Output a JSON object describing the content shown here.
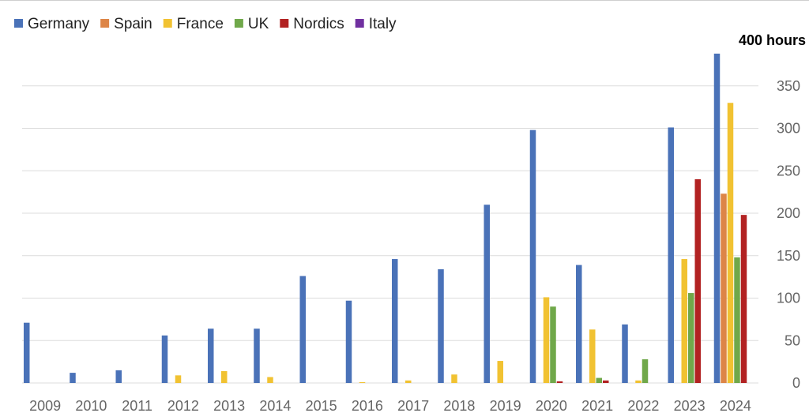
{
  "chart_data": {
    "type": "bar",
    "title": "",
    "xlabel": "",
    "ylabel": "",
    "unit_label": "400 hours",
    "ylim": [
      0,
      400
    ],
    "yticks": [
      0,
      50,
      100,
      150,
      200,
      250,
      300,
      350
    ],
    "grid": true,
    "legend_position": "top-left",
    "categories": [
      "2009",
      "2010",
      "2011",
      "2012",
      "2013",
      "2014",
      "2015",
      "2016",
      "2017",
      "2018",
      "2019",
      "2020",
      "2021",
      "2022",
      "2023",
      "2024"
    ],
    "series": [
      {
        "name": "Germany",
        "color": "#4a72b8",
        "values": [
          71,
          12,
          15,
          56,
          64,
          64,
          126,
          97,
          146,
          134,
          210,
          298,
          139,
          69,
          301,
          388
        ]
      },
      {
        "name": "Spain",
        "color": "#dd8547",
        "values": [
          0,
          0,
          0,
          0,
          0,
          0,
          0,
          0,
          0,
          0,
          0,
          0,
          0,
          0,
          0,
          223
        ]
      },
      {
        "name": "France",
        "color": "#f1c232",
        "values": [
          0,
          0,
          0,
          9,
          14,
          7,
          0,
          1,
          3,
          10,
          26,
          101,
          63,
          3,
          146,
          330
        ]
      },
      {
        "name": "UK",
        "color": "#70a84a",
        "values": [
          0,
          0,
          0,
          0,
          0,
          0,
          0,
          0,
          0,
          0,
          0,
          90,
          6,
          28,
          106,
          148
        ]
      },
      {
        "name": "Nordics",
        "color": "#b22222",
        "values": [
          0,
          0,
          0,
          0,
          0,
          0,
          0,
          0,
          0,
          0,
          0,
          2,
          3,
          0,
          240,
          198
        ]
      },
      {
        "name": "Italy",
        "color": "#7030a0",
        "values": [
          0,
          0,
          0,
          0,
          0,
          0,
          0,
          0,
          0,
          0,
          0,
          0,
          0,
          0,
          0,
          0
        ]
      }
    ]
  }
}
